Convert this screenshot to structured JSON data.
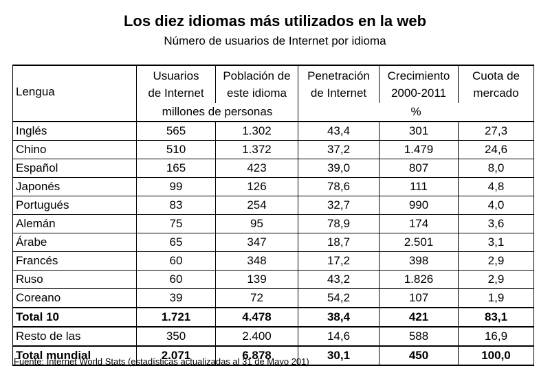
{
  "title": "Los diez idiomas más utilizados en la web",
  "subtitle": "Número de usuarios de Internet por idioma",
  "source": "Fuente: Internet World Stats (estadísticas actualizadas al 31 de Mayo 201)",
  "chart_data": {
    "type": "table",
    "columns": [
      {
        "line1": "",
        "line2": "Lengua"
      },
      {
        "line1": "Usuarios",
        "line2": "de Internet"
      },
      {
        "line1": "Población de",
        "line2": "este idioma"
      },
      {
        "line1": "Penetración",
        "line2": "de Internet"
      },
      {
        "line1": "Crecimiento",
        "line2": "2000-2011"
      },
      {
        "line1": "Cuota de",
        "line2": "mercado"
      }
    ],
    "units": [
      "millones de personas",
      "%"
    ],
    "rows": [
      [
        "Inglés",
        "565",
        "1.302",
        "43,4",
        "301",
        "27,3"
      ],
      [
        "Chino",
        "510",
        "1.372",
        "37,2",
        "1.479",
        "24,6"
      ],
      [
        "Español",
        "165",
        "423",
        "39,0",
        "807",
        "8,0"
      ],
      [
        "Japonés",
        "99",
        "126",
        "78,6",
        "111",
        "4,8"
      ],
      [
        "Portugués",
        "83",
        "254",
        "32,7",
        "990",
        "4,0"
      ],
      [
        "Alemán",
        "75",
        "95",
        "78,9",
        "174",
        "3,6"
      ],
      [
        "Árabe",
        "65",
        "347",
        "18,7",
        "2.501",
        "3,1"
      ],
      [
        "Francés",
        "60",
        "348",
        "17,2",
        "398",
        "2,9"
      ],
      [
        "Ruso",
        "60",
        "139",
        "43,2",
        "1.826",
        "2,9"
      ],
      [
        "Coreano",
        "39",
        "72",
        "54,2",
        "107",
        "1,9"
      ]
    ],
    "total10": [
      "Total 10",
      "1.721",
      "4.478",
      "38,4",
      "421",
      "83,1"
    ],
    "rest": [
      "Resto de las",
      "350",
      "2.400",
      "14,6",
      "588",
      "16,9"
    ],
    "total_world": [
      "Total mundial",
      "2.071",
      "6.878",
      "30,1",
      "450",
      "100,0"
    ]
  }
}
